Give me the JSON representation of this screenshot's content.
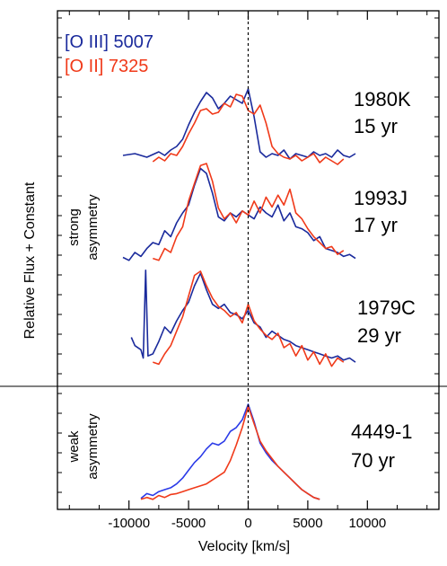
{
  "chart_data": {
    "type": "line",
    "xlabel": "Velocity [km/s]",
    "ylabel": "Relative Flux + Constant",
    "xlim": [
      -16000,
      16000
    ],
    "x_ticks": [
      -10000,
      -5000,
      0,
      5000,
      10000
    ],
    "x_tick_labels": [
      "-10000",
      "-5000",
      "0",
      "5000",
      "10000"
    ],
    "zero_velocity_line": true,
    "legend": {
      "placement": "top-left",
      "entries": [
        {
          "label": "[O III] 5007",
          "color": "#1a2a9c"
        },
        {
          "label": "[O II] 7325",
          "color": "#f03a1a"
        }
      ]
    },
    "groups": [
      {
        "label_line1": "strong",
        "label_line2": "asymmetry"
      },
      {
        "label_line1": "weak",
        "label_line2": "asymmetry"
      }
    ],
    "panels": [
      {
        "name_label": "1980K",
        "age_label": "15 yr",
        "group": 0,
        "series": [
          {
            "name": "[O III] 5007",
            "color": "#1a2a9c",
            "x": [
              -10500,
              -9500,
              -8500,
              -7500,
              -7000,
              -6500,
              -6000,
              -5500,
              -5000,
              -4500,
              -4000,
              -3500,
              -3000,
              -2500,
              -2000,
              -1500,
              -1000,
              -500,
              0,
              500,
              1000,
              1500,
              2000,
              2500,
              3000,
              3500,
              4000,
              4500,
              5000,
              5500,
              6000,
              6500,
              7000,
              7500,
              8000,
              8500,
              9000
            ],
            "y": [
              0.12,
              0.14,
              0.1,
              0.16,
              0.12,
              0.18,
              0.22,
              0.3,
              0.46,
              0.6,
              0.72,
              0.82,
              0.76,
              0.64,
              0.7,
              0.78,
              0.74,
              0.7,
              0.86,
              0.55,
              0.16,
              0.1,
              0.14,
              0.12,
              0.18,
              0.08,
              0.14,
              0.12,
              0.1,
              0.16,
              0.12,
              0.14,
              0.1,
              0.18,
              0.12,
              0.1,
              0.14
            ]
          },
          {
            "name": "[O II] 7325",
            "color": "#f03a1a",
            "x": [
              -8000,
              -7500,
              -7000,
              -6500,
              -6000,
              -5500,
              -5000,
              -4500,
              -4000,
              -3500,
              -3000,
              -2500,
              -2000,
              -1500,
              -1000,
              -500,
              0,
              500,
              1000,
              1500,
              2000,
              2500,
              3000,
              3500,
              4000,
              4500,
              5000,
              5500,
              6000,
              6500,
              7000,
              7500,
              8000
            ],
            "y": [
              0.05,
              0.1,
              0.06,
              0.14,
              0.12,
              0.22,
              0.36,
              0.48,
              0.62,
              0.64,
              0.58,
              0.6,
              0.7,
              0.66,
              0.8,
              0.78,
              0.62,
              0.58,
              0.68,
              0.48,
              0.22,
              0.14,
              0.1,
              0.08,
              0.12,
              0.06,
              0.1,
              0.14,
              0.04,
              0.1,
              0.06,
              0.02,
              0.08
            ]
          }
        ]
      },
      {
        "name_label": "1993J",
        "age_label": "17 yr",
        "group": 0,
        "series": [
          {
            "name": "[O III] 5007",
            "color": "#1a2a9c",
            "x": [
              -10500,
              -10000,
              -9500,
              -9000,
              -8500,
              -8000,
              -7500,
              -7000,
              -6500,
              -6000,
              -5500,
              -5000,
              -4500,
              -4000,
              -3500,
              -3000,
              -2500,
              -2000,
              -1500,
              -1000,
              -500,
              0,
              500,
              1000,
              1500,
              2000,
              2500,
              3000,
              3500,
              4000,
              4500,
              5000,
              5500,
              6000,
              6500,
              7000,
              7500,
              8000,
              8500,
              9000
            ],
            "y": [
              0.05,
              0.02,
              0.1,
              0.06,
              0.14,
              0.2,
              0.18,
              0.32,
              0.26,
              0.4,
              0.5,
              0.58,
              0.78,
              0.95,
              0.9,
              0.7,
              0.46,
              0.42,
              0.5,
              0.46,
              0.52,
              0.48,
              0.44,
              0.56,
              0.5,
              0.46,
              0.58,
              0.42,
              0.5,
              0.36,
              0.34,
              0.3,
              0.22,
              0.26,
              0.14,
              0.12,
              0.1,
              0.06,
              0.08,
              0.04
            ]
          },
          {
            "name": "[O II] 7325",
            "color": "#f03a1a",
            "x": [
              -8000,
              -7500,
              -7000,
              -6500,
              -6000,
              -5500,
              -5000,
              -4500,
              -4000,
              -3500,
              -3000,
              -2500,
              -2000,
              -1500,
              -1000,
              -500,
              0,
              500,
              1000,
              1500,
              2000,
              2500,
              3000,
              3500,
              4000,
              4500,
              5000,
              5500,
              6000,
              6500,
              7000,
              7500,
              8000
            ],
            "y": [
              0.04,
              0.02,
              0.14,
              0.1,
              0.26,
              0.36,
              0.62,
              0.8,
              0.98,
              1.0,
              0.82,
              0.55,
              0.44,
              0.5,
              0.4,
              0.52,
              0.48,
              0.62,
              0.5,
              0.66,
              0.56,
              0.68,
              0.58,
              0.74,
              0.5,
              0.44,
              0.34,
              0.26,
              0.2,
              0.14,
              0.16,
              0.08,
              0.12
            ]
          }
        ]
      },
      {
        "name_label": "1979C",
        "age_label": "29 yr",
        "group": 0,
        "series": [
          {
            "name": "[O III] 5007",
            "color": "#1a2a9c",
            "x": [
              -9800,
              -9500,
              -9000,
              -8800,
              -8600,
              -8400,
              -8000,
              -7500,
              -7000,
              -6500,
              -6000,
              -5500,
              -5000,
              -4500,
              -4000,
              -3500,
              -3000,
              -2500,
              -2000,
              -1500,
              -1000,
              -500,
              0,
              500,
              1000,
              1500,
              2000,
              2500,
              3000,
              3500,
              4000,
              4500,
              5000,
              5500,
              6000,
              6500,
              7000,
              7500,
              8000,
              8500,
              9000
            ],
            "y": [
              0.3,
              0.22,
              0.18,
              0.1,
              0.95,
              0.12,
              0.14,
              0.26,
              0.4,
              0.34,
              0.46,
              0.56,
              0.64,
              0.8,
              0.92,
              0.76,
              0.62,
              0.58,
              0.62,
              0.54,
              0.52,
              0.48,
              0.56,
              0.44,
              0.4,
              0.3,
              0.36,
              0.32,
              0.28,
              0.26,
              0.22,
              0.2,
              0.18,
              0.16,
              0.14,
              0.12,
              0.1,
              0.12,
              0.08,
              0.1,
              0.06
            ]
          },
          {
            "name": "[O II] 7325",
            "color": "#f03a1a",
            "x": [
              -8000,
              -7500,
              -7000,
              -6500,
              -6000,
              -5500,
              -5000,
              -4500,
              -4000,
              -3500,
              -3000,
              -2500,
              -2000,
              -1500,
              -1000,
              -500,
              0,
              500,
              1000,
              1500,
              2000,
              2500,
              3000,
              3500,
              4000,
              4500,
              5000,
              5500,
              6000,
              6500,
              7000,
              7500,
              8000
            ],
            "y": [
              0.06,
              0.04,
              0.14,
              0.22,
              0.36,
              0.5,
              0.7,
              0.9,
              0.94,
              0.8,
              0.68,
              0.6,
              0.56,
              0.5,
              0.54,
              0.44,
              0.62,
              0.46,
              0.38,
              0.32,
              0.28,
              0.34,
              0.2,
              0.24,
              0.12,
              0.22,
              0.08,
              0.16,
              0.04,
              0.14,
              0.02,
              0.1,
              0.06
            ]
          }
        ]
      },
      {
        "name_label": "4449-1",
        "age_label": "70 yr",
        "group": 1,
        "series": [
          {
            "name": "[O III] 5007",
            "color": "#2a3ae8",
            "x": [
              -9000,
              -8500,
              -8000,
              -7500,
              -7000,
              -6500,
              -6000,
              -5500,
              -5000,
              -4500,
              -4000,
              -3500,
              -3000,
              -2500,
              -2000,
              -1500,
              -1000,
              -500,
              0,
              500,
              1000,
              1500,
              2000,
              2500,
              3000,
              3500,
              4000,
              4500,
              5000,
              5500,
              6000
            ],
            "y": [
              0.03,
              0.08,
              0.06,
              0.1,
              0.12,
              0.14,
              0.18,
              0.24,
              0.32,
              0.4,
              0.46,
              0.54,
              0.6,
              0.58,
              0.62,
              0.72,
              0.76,
              0.84,
              1.0,
              0.82,
              0.6,
              0.5,
              0.42,
              0.36,
              0.3,
              0.24,
              0.18,
              0.12,
              0.08,
              0.04,
              0.02
            ]
          },
          {
            "name": "[O II] 7325",
            "color": "#f03a1a",
            "x": [
              -9000,
              -8500,
              -8000,
              -7500,
              -7000,
              -6500,
              -6000,
              -5500,
              -5000,
              -4500,
              -4000,
              -3500,
              -3000,
              -2500,
              -2000,
              -1500,
              -1000,
              -500,
              0,
              500,
              1000,
              1500,
              2000,
              2500,
              3000,
              3500,
              4000,
              4500,
              5000,
              5500,
              6000
            ],
            "y": [
              0.02,
              0.04,
              0.02,
              0.06,
              0.04,
              0.07,
              0.08,
              0.1,
              0.12,
              0.14,
              0.16,
              0.18,
              0.22,
              0.26,
              0.3,
              0.42,
              0.58,
              0.76,
              0.98,
              0.8,
              0.62,
              0.52,
              0.44,
              0.36,
              0.3,
              0.24,
              0.18,
              0.12,
              0.08,
              0.04,
              0.02
            ]
          }
        ]
      }
    ]
  }
}
